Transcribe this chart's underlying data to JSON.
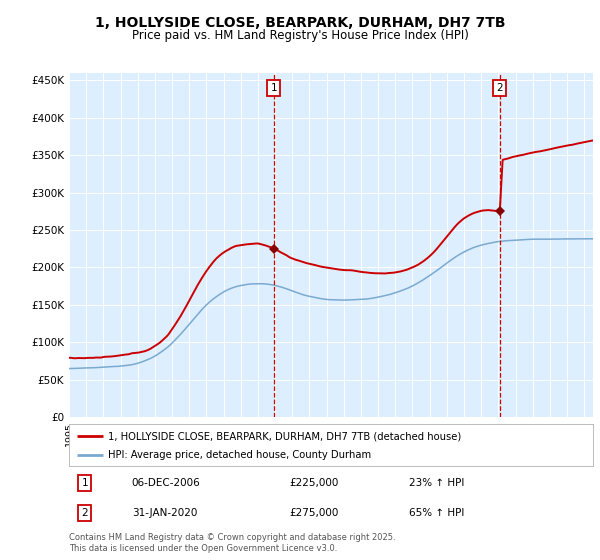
{
  "title": "1, HOLLYSIDE CLOSE, BEARPARK, DURHAM, DH7 7TB",
  "subtitle": "Price paid vs. HM Land Registry's House Price Index (HPI)",
  "title_fontsize": 10,
  "subtitle_fontsize": 8.5,
  "bg_color": "#ddeeff",
  "red_color": "#cc0000",
  "blue_color": "#7aaad0",
  "marker_color": "#880000",
  "vline_color": "#cc0000",
  "annotation_box_color": "#cc0000",
  "yticks": [
    0,
    50000,
    100000,
    150000,
    200000,
    250000,
    300000,
    350000,
    400000,
    450000
  ],
  "ytick_labels": [
    "£0",
    "£50K",
    "£100K",
    "£150K",
    "£200K",
    "£250K",
    "£300K",
    "£350K",
    "£400K",
    "£450K"
  ],
  "purchase1_date_num": 2006.92,
  "purchase1_price": 225000,
  "purchase1_date_str": "06-DEC-2006",
  "purchase1_pct": "23%",
  "purchase2_date_num": 2020.08,
  "purchase2_price": 275000,
  "purchase2_date_str": "31-JAN-2020",
  "purchase2_pct": "65%",
  "legend_line1": "1, HOLLYSIDE CLOSE, BEARPARK, DURHAM, DH7 7TB (detached house)",
  "legend_line2": "HPI: Average price, detached house, County Durham",
  "footer": "Contains HM Land Registry data © Crown copyright and database right 2025.\nThis data is licensed under the Open Government Licence v3.0.",
  "xmin": 1995.0,
  "xmax": 2025.5,
  "ymin": 0,
  "ymax": 460000
}
